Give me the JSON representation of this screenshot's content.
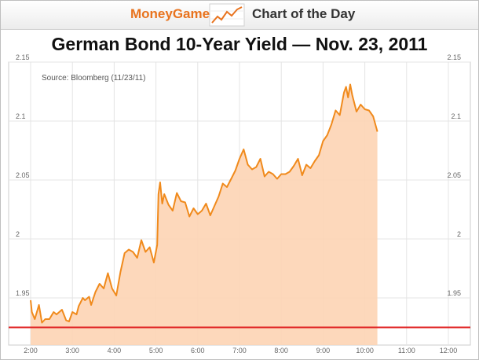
{
  "banner": {
    "brand": "MoneyGame",
    "label": "Chart of the Day",
    "logo_icon": "rising-line-icon",
    "brand_color": "#e8731e"
  },
  "colors": {
    "line": "#f08a1c",
    "fill": "#fdd4b4",
    "baseline": "#e02020",
    "grid": "#e4e4e4"
  },
  "chart_data": {
    "type": "area",
    "title": "German Bond 10-Year Yield — Nov. 23, 2011",
    "source": "Source: Bloomberg (11/23/11)",
    "xlabel": "",
    "ylabel": "",
    "x_ticks": [
      "2:00",
      "3:00",
      "4:00",
      "5:00",
      "6:00",
      "7:00",
      "8:00",
      "9:00",
      "10:00",
      "11:00",
      "12:00"
    ],
    "y_ticks": [
      "2.15",
      "2.1",
      "2.05",
      "2",
      "1.95"
    ],
    "y_ticks_right": [
      "2.15",
      "2.1",
      "2.05",
      "2",
      "1.95"
    ],
    "xlim": [
      2.0,
      12.0
    ],
    "ylim": [
      1.91,
      2.15
    ],
    "grid": true,
    "reference_line": 1.925,
    "series": [
      {
        "x": [
          2.0,
          2.03,
          2.1,
          2.2,
          2.27,
          2.35,
          2.45,
          2.55,
          2.62,
          2.75,
          2.85,
          2.92,
          3.0,
          3.1,
          3.15,
          3.25,
          3.3,
          3.4,
          3.45,
          3.55,
          3.65,
          3.75,
          3.85,
          3.95,
          4.05,
          4.15,
          4.25,
          4.35,
          4.45,
          4.55,
          4.65,
          4.75,
          4.85,
          4.95,
          5.03,
          5.06,
          5.1,
          5.15,
          5.2,
          5.3,
          5.4,
          5.5,
          5.6,
          5.7,
          5.8,
          5.9,
          6.0,
          6.1,
          6.2,
          6.3,
          6.4,
          6.5,
          6.6,
          6.7,
          6.8,
          6.9,
          7.0,
          7.1,
          7.2,
          7.3,
          7.4,
          7.5,
          7.6,
          7.7,
          7.8,
          7.9,
          8.0,
          8.1,
          8.2,
          8.3,
          8.4,
          8.5,
          8.6,
          8.7,
          8.8,
          8.9,
          9.0,
          9.1,
          9.2,
          9.3,
          9.4,
          9.5,
          9.55,
          9.6,
          9.65,
          9.7,
          9.8,
          9.9,
          10.0,
          10.1,
          10.2,
          10.3
        ],
        "y": [
          1.948,
          1.938,
          1.932,
          1.944,
          1.929,
          1.932,
          1.932,
          1.938,
          1.936,
          1.94,
          1.931,
          1.93,
          1.938,
          1.936,
          1.943,
          1.95,
          1.948,
          1.951,
          1.944,
          1.955,
          1.962,
          1.958,
          1.971,
          1.958,
          1.952,
          1.972,
          1.988,
          1.991,
          1.989,
          1.984,
          1.999,
          1.989,
          1.993,
          1.98,
          1.995,
          2.038,
          2.048,
          2.03,
          2.038,
          2.029,
          2.024,
          2.039,
          2.032,
          2.031,
          2.019,
          2.026,
          2.021,
          2.024,
          2.03,
          2.02,
          2.028,
          2.036,
          2.047,
          2.044,
          2.051,
          2.058,
          2.068,
          2.076,
          2.063,
          2.059,
          2.061,
          2.068,
          2.053,
          2.057,
          2.055,
          2.051,
          2.055,
          2.055,
          2.057,
          2.062,
          2.068,
          2.054,
          2.063,
          2.06,
          2.066,
          2.071,
          2.083,
          2.088,
          2.097,
          2.109,
          2.105,
          2.124,
          2.129,
          2.12,
          2.131,
          2.122,
          2.108,
          2.114,
          2.11,
          2.109,
          2.104,
          2.091
        ]
      }
    ]
  }
}
